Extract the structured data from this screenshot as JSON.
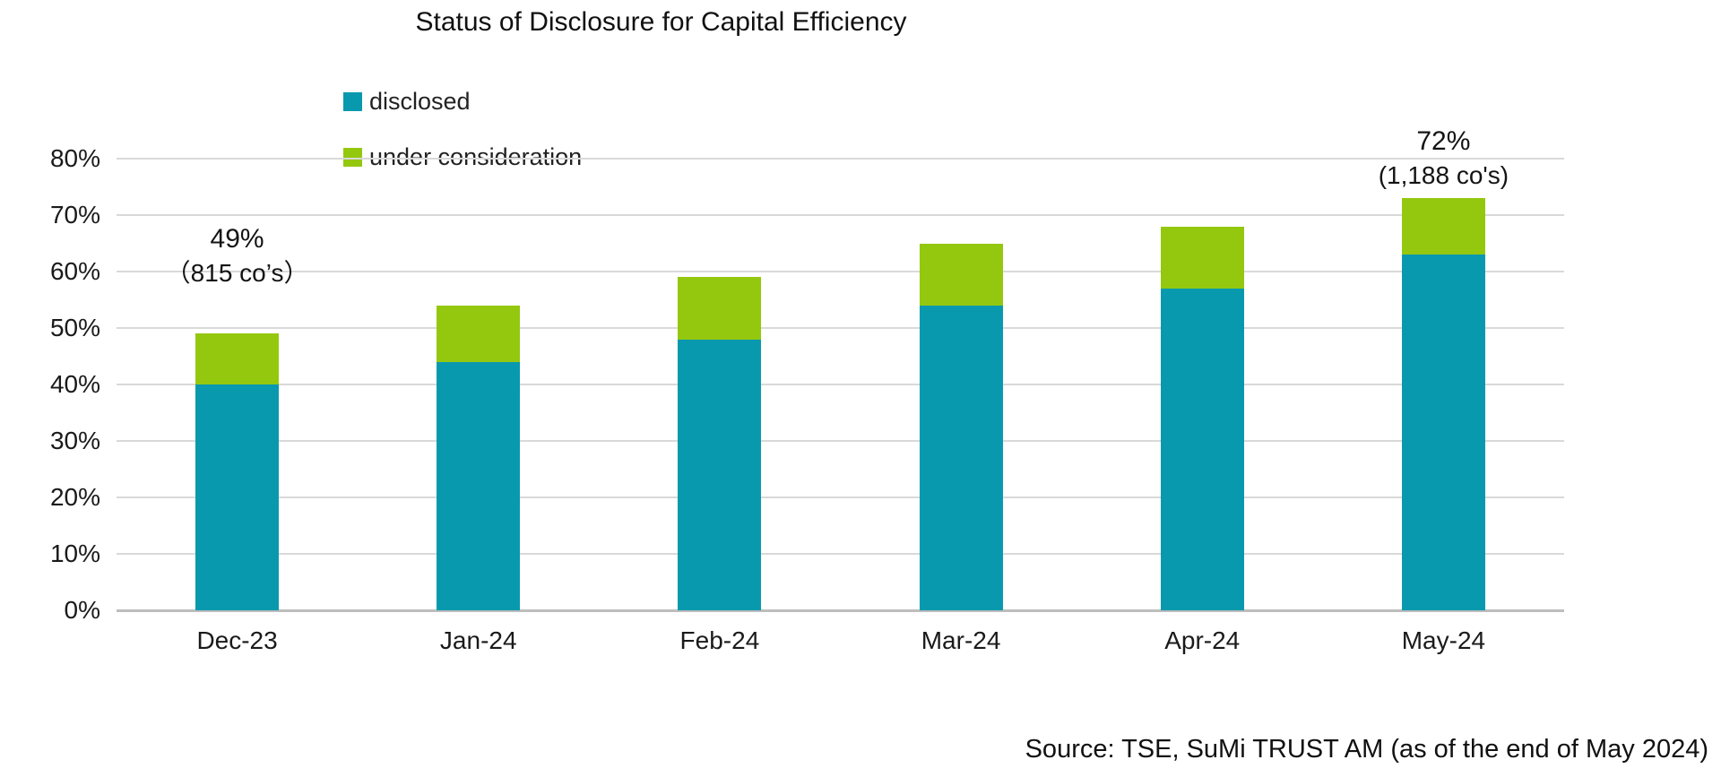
{
  "page": {
    "background": "#ffffff"
  },
  "chart_data": {
    "type": "bar",
    "stacked": true,
    "title": "Status of Disclosure for Capital Efficiency",
    "categories": [
      "Dec-23",
      "Jan-24",
      "Feb-24",
      "Mar-24",
      "Apr-24",
      "May-24"
    ],
    "series": [
      {
        "name": "disclosed",
        "color": "#0999AE",
        "values": [
          40,
          44,
          48,
          54,
          57,
          63
        ]
      },
      {
        "name": "under consideration",
        "color": "#94C80F",
        "values": [
          9,
          10,
          11,
          11,
          11,
          10
        ]
      }
    ],
    "stack_totals": [
      49,
      54,
      59,
      65,
      68,
      73
    ],
    "ylim": [
      0,
      80
    ],
    "ytick_step": 10,
    "yticks": [
      "0%",
      "10%",
      "20%",
      "30%",
      "40%",
      "50%",
      "60%",
      "70%",
      "80%"
    ],
    "grid": true,
    "gridline_color": "#d9d9d9",
    "axis_line_color": "#bdbdbd",
    "legend": {
      "position": "top-left-inside",
      "items": [
        "disclosed",
        "under consideration"
      ]
    },
    "annotations": [
      {
        "category_index": 0,
        "line1": "49%",
        "line2": "（815 co’s）"
      },
      {
        "category_index": 5,
        "line1": "72%",
        "line2": "(1,188 co's)"
      }
    ],
    "source": "Source: TSE, SuMi TRUST AM (as of the end of May 2024)"
  }
}
